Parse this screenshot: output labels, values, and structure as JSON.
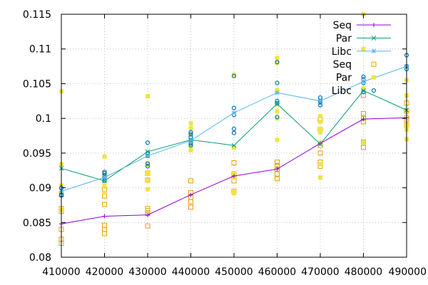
{
  "chart_data": {
    "type": "line",
    "title": "",
    "xlabel": "",
    "ylabel": "",
    "xlim": [
      410000,
      490000
    ],
    "ylim": [
      0.08,
      0.115
    ],
    "xticks": [
      410000,
      420000,
      430000,
      440000,
      450000,
      460000,
      470000,
      480000,
      490000
    ],
    "xtick_labels": [
      "410000",
      "420000",
      "430000",
      "440000",
      "450000",
      "460000",
      "470000",
      "480000",
      "490000"
    ],
    "yticks": [
      0.08,
      0.085,
      0.09,
      0.095,
      0.1,
      0.105,
      0.11,
      0.115
    ],
    "ytick_labels": [
      "0.08",
      "0.085",
      "0.09",
      "0.095",
      "0.1",
      "0.105",
      "0.11",
      "0.115"
    ],
    "grid": true,
    "legend_position": "top-right",
    "x": [
      410000,
      420000,
      430000,
      440000,
      450000,
      460000,
      470000,
      480000,
      490000
    ],
    "series": [
      {
        "name": "Seq",
        "kind": "line",
        "marker": "plus",
        "color": "#9400d3",
        "values": [
          0.0848,
          0.0859,
          0.0861,
          0.089,
          0.0917,
          0.0927,
          0.0964,
          0.0999,
          0.1001
        ]
      },
      {
        "name": "Par",
        "kind": "line",
        "marker": "x",
        "color": "#009e73",
        "values": [
          0.0928,
          0.091,
          0.0952,
          0.0969,
          0.0961,
          0.1021,
          0.0963,
          0.104,
          0.1012
        ]
      },
      {
        "name": "Libc",
        "kind": "line",
        "marker": "star",
        "color": "#56b4e9",
        "values": [
          0.0895,
          0.0915,
          0.0946,
          0.0968,
          0.1008,
          0.1037,
          0.1025,
          0.1053,
          0.1075
        ]
      }
    ],
    "scatter_series": [
      {
        "name": "Seq",
        "marker": "open-square",
        "color": "#e69f00",
        "points": [
          [
            410000,
            0.082
          ],
          [
            410000,
            0.0826
          ],
          [
            410000,
            0.084
          ],
          [
            410000,
            0.0866
          ],
          [
            410000,
            0.087
          ],
          [
            410000,
            0.089
          ],
          [
            420000,
            0.0834
          ],
          [
            420000,
            0.084
          ],
          [
            420000,
            0.0846
          ],
          [
            420000,
            0.0876
          ],
          [
            420000,
            0.0888
          ],
          [
            420000,
            0.0897
          ],
          [
            430000,
            0.0845
          ],
          [
            430000,
            0.0863
          ],
          [
            430000,
            0.0867
          ],
          [
            430000,
            0.087
          ],
          [
            430000,
            0.0911
          ],
          [
            430000,
            0.0921
          ],
          [
            440000,
            0.0872
          ],
          [
            440000,
            0.088
          ],
          [
            440000,
            0.0886
          ],
          [
            440000,
            0.0893
          ],
          [
            440000,
            0.091
          ],
          [
            450000,
            0.0895
          ],
          [
            450000,
            0.091
          ],
          [
            450000,
            0.0916
          ],
          [
            450000,
            0.092
          ],
          [
            450000,
            0.0936
          ],
          [
            460000,
            0.0913
          ],
          [
            460000,
            0.092
          ],
          [
            460000,
            0.0927
          ],
          [
            460000,
            0.0932
          ],
          [
            460000,
            0.0937
          ],
          [
            470000,
            0.0931
          ],
          [
            470000,
            0.0937
          ],
          [
            470000,
            0.095
          ],
          [
            470000,
            0.0961
          ],
          [
            470000,
            0.0984
          ],
          [
            470000,
            0.0998
          ],
          [
            480000,
            0.0958
          ],
          [
            480000,
            0.0966
          ],
          [
            480000,
            0.0995
          ],
          [
            480000,
            0.1
          ],
          [
            480000,
            0.1007
          ],
          [
            480000,
            0.1033
          ],
          [
            490000,
            0.099
          ],
          [
            490000,
            0.0998
          ],
          [
            490000,
            0.1001
          ],
          [
            490000,
            0.101
          ],
          [
            490000,
            0.1022
          ]
        ]
      },
      {
        "name": "Par",
        "marker": "filled-square",
        "color": "#f0e442",
        "points": [
          [
            410000,
            0.0868
          ],
          [
            410000,
            0.0893
          ],
          [
            410000,
            0.0903
          ],
          [
            410000,
            0.0934
          ],
          [
            410000,
            0.1039
          ],
          [
            420000,
            0.0893
          ],
          [
            420000,
            0.0903
          ],
          [
            420000,
            0.0918
          ],
          [
            420000,
            0.0945
          ],
          [
            430000,
            0.0898
          ],
          [
            430000,
            0.091
          ],
          [
            430000,
            0.0921
          ],
          [
            430000,
            0.0933
          ],
          [
            430000,
            0.1032
          ],
          [
            440000,
            0.0954
          ],
          [
            440000,
            0.0961
          ],
          [
            440000,
            0.0969
          ],
          [
            440000,
            0.0977
          ],
          [
            440000,
            0.0986
          ],
          [
            440000,
            0.0993
          ],
          [
            450000,
            0.0892
          ],
          [
            450000,
            0.0895
          ],
          [
            450000,
            0.0915
          ],
          [
            450000,
            0.0921
          ],
          [
            450000,
            0.0958
          ],
          [
            450000,
            0.1063
          ],
          [
            460000,
            0.0969
          ],
          [
            460000,
            0.1
          ],
          [
            460000,
            0.101
          ],
          [
            460000,
            0.102
          ],
          [
            460000,
            0.1041
          ],
          [
            460000,
            0.108
          ],
          [
            460000,
            0.1087
          ],
          [
            470000,
            0.0915
          ],
          [
            470000,
            0.0934
          ],
          [
            470000,
            0.0965
          ],
          [
            470000,
            0.098
          ],
          [
            470000,
            0.0985
          ],
          [
            470000,
            0.0995
          ],
          [
            470000,
            0.1003
          ],
          [
            480000,
            0.0965
          ],
          [
            480000,
            0.1043
          ],
          [
            480000,
            0.11
          ],
          [
            480000,
            0.115
          ],
          [
            490000,
            0.097
          ],
          [
            490000,
            0.0984
          ],
          [
            490000,
            0.099
          ],
          [
            490000,
            0.101
          ],
          [
            490000,
            0.1033
          ],
          [
            490000,
            0.1055
          ]
        ]
      },
      {
        "name": "Libc",
        "marker": "open-circle",
        "color": "#0072b2",
        "points": [
          [
            410000,
            0.0889
          ],
          [
            410000,
            0.089
          ],
          [
            410000,
            0.09
          ],
          [
            420000,
            0.091
          ],
          [
            420000,
            0.0915
          ],
          [
            420000,
            0.0918
          ],
          [
            420000,
            0.0921
          ],
          [
            420000,
            0.0923
          ],
          [
            430000,
            0.0931
          ],
          [
            430000,
            0.0935
          ],
          [
            430000,
            0.0946
          ],
          [
            430000,
            0.095
          ],
          [
            430000,
            0.0965
          ],
          [
            440000,
            0.0961
          ],
          [
            440000,
            0.0964
          ],
          [
            440000,
            0.0968
          ],
          [
            440000,
            0.0973
          ],
          [
            440000,
            0.0977
          ],
          [
            440000,
            0.098
          ],
          [
            450000,
            0.0979
          ],
          [
            450000,
            0.0985
          ],
          [
            450000,
            0.1005
          ],
          [
            450000,
            0.1015
          ],
          [
            450000,
            0.1061
          ],
          [
            460000,
            0.1002
          ],
          [
            460000,
            0.1022
          ],
          [
            460000,
            0.1025
          ],
          [
            460000,
            0.1051
          ],
          [
            460000,
            0.1081
          ],
          [
            470000,
            0.1019
          ],
          [
            470000,
            0.1023
          ],
          [
            470000,
            0.1025
          ],
          [
            470000,
            0.103
          ],
          [
            480000,
            0.1051
          ],
          [
            480000,
            0.1056
          ],
          [
            480000,
            0.106
          ],
          [
            480000,
            0.1038
          ],
          [
            490000,
            0.1071
          ],
          [
            490000,
            0.1075
          ],
          [
            490000,
            0.1091
          ]
        ]
      }
    ]
  }
}
